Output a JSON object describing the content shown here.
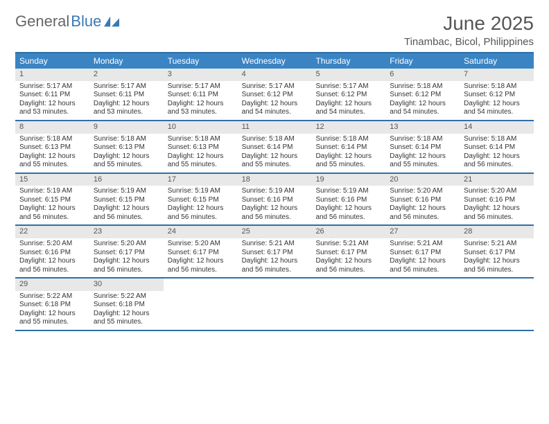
{
  "brand": {
    "part1": "General",
    "part2": "Blue"
  },
  "title": "June 2025",
  "location": "Tinambac, Bicol, Philippines",
  "colors": {
    "header_bar": "#3a84c4",
    "rule": "#2e6fa7",
    "daynum_bg": "#e8e8e8",
    "brand_accent": "#3a78b5"
  },
  "days_of_week": [
    "Sunday",
    "Monday",
    "Tuesday",
    "Wednesday",
    "Thursday",
    "Friday",
    "Saturday"
  ],
  "weeks": [
    [
      {
        "n": "1",
        "sunrise": "5:17 AM",
        "sunset": "6:11 PM",
        "daylight": "12 hours and 53 minutes."
      },
      {
        "n": "2",
        "sunrise": "5:17 AM",
        "sunset": "6:11 PM",
        "daylight": "12 hours and 53 minutes."
      },
      {
        "n": "3",
        "sunrise": "5:17 AM",
        "sunset": "6:11 PM",
        "daylight": "12 hours and 53 minutes."
      },
      {
        "n": "4",
        "sunrise": "5:17 AM",
        "sunset": "6:12 PM",
        "daylight": "12 hours and 54 minutes."
      },
      {
        "n": "5",
        "sunrise": "5:17 AM",
        "sunset": "6:12 PM",
        "daylight": "12 hours and 54 minutes."
      },
      {
        "n": "6",
        "sunrise": "5:18 AM",
        "sunset": "6:12 PM",
        "daylight": "12 hours and 54 minutes."
      },
      {
        "n": "7",
        "sunrise": "5:18 AM",
        "sunset": "6:12 PM",
        "daylight": "12 hours and 54 minutes."
      }
    ],
    [
      {
        "n": "8",
        "sunrise": "5:18 AM",
        "sunset": "6:13 PM",
        "daylight": "12 hours and 55 minutes."
      },
      {
        "n": "9",
        "sunrise": "5:18 AM",
        "sunset": "6:13 PM",
        "daylight": "12 hours and 55 minutes."
      },
      {
        "n": "10",
        "sunrise": "5:18 AM",
        "sunset": "6:13 PM",
        "daylight": "12 hours and 55 minutes."
      },
      {
        "n": "11",
        "sunrise": "5:18 AM",
        "sunset": "6:14 PM",
        "daylight": "12 hours and 55 minutes."
      },
      {
        "n": "12",
        "sunrise": "5:18 AM",
        "sunset": "6:14 PM",
        "daylight": "12 hours and 55 minutes."
      },
      {
        "n": "13",
        "sunrise": "5:18 AM",
        "sunset": "6:14 PM",
        "daylight": "12 hours and 55 minutes."
      },
      {
        "n": "14",
        "sunrise": "5:18 AM",
        "sunset": "6:14 PM",
        "daylight": "12 hours and 56 minutes."
      }
    ],
    [
      {
        "n": "15",
        "sunrise": "5:19 AM",
        "sunset": "6:15 PM",
        "daylight": "12 hours and 56 minutes."
      },
      {
        "n": "16",
        "sunrise": "5:19 AM",
        "sunset": "6:15 PM",
        "daylight": "12 hours and 56 minutes."
      },
      {
        "n": "17",
        "sunrise": "5:19 AM",
        "sunset": "6:15 PM",
        "daylight": "12 hours and 56 minutes."
      },
      {
        "n": "18",
        "sunrise": "5:19 AM",
        "sunset": "6:16 PM",
        "daylight": "12 hours and 56 minutes."
      },
      {
        "n": "19",
        "sunrise": "5:19 AM",
        "sunset": "6:16 PM",
        "daylight": "12 hours and 56 minutes."
      },
      {
        "n": "20",
        "sunrise": "5:20 AM",
        "sunset": "6:16 PM",
        "daylight": "12 hours and 56 minutes."
      },
      {
        "n": "21",
        "sunrise": "5:20 AM",
        "sunset": "6:16 PM",
        "daylight": "12 hours and 56 minutes."
      }
    ],
    [
      {
        "n": "22",
        "sunrise": "5:20 AM",
        "sunset": "6:16 PM",
        "daylight": "12 hours and 56 minutes."
      },
      {
        "n": "23",
        "sunrise": "5:20 AM",
        "sunset": "6:17 PM",
        "daylight": "12 hours and 56 minutes."
      },
      {
        "n": "24",
        "sunrise": "5:20 AM",
        "sunset": "6:17 PM",
        "daylight": "12 hours and 56 minutes."
      },
      {
        "n": "25",
        "sunrise": "5:21 AM",
        "sunset": "6:17 PM",
        "daylight": "12 hours and 56 minutes."
      },
      {
        "n": "26",
        "sunrise": "5:21 AM",
        "sunset": "6:17 PM",
        "daylight": "12 hours and 56 minutes."
      },
      {
        "n": "27",
        "sunrise": "5:21 AM",
        "sunset": "6:17 PM",
        "daylight": "12 hours and 56 minutes."
      },
      {
        "n": "28",
        "sunrise": "5:21 AM",
        "sunset": "6:17 PM",
        "daylight": "12 hours and 56 minutes."
      }
    ],
    [
      {
        "n": "29",
        "sunrise": "5:22 AM",
        "sunset": "6:18 PM",
        "daylight": "12 hours and 55 minutes."
      },
      {
        "n": "30",
        "sunrise": "5:22 AM",
        "sunset": "6:18 PM",
        "daylight": "12 hours and 55 minutes."
      },
      {
        "empty": true
      },
      {
        "empty": true
      },
      {
        "empty": true
      },
      {
        "empty": true
      },
      {
        "empty": true
      }
    ]
  ],
  "labels": {
    "sunrise": "Sunrise: ",
    "sunset": "Sunset: ",
    "daylight": "Daylight: "
  }
}
